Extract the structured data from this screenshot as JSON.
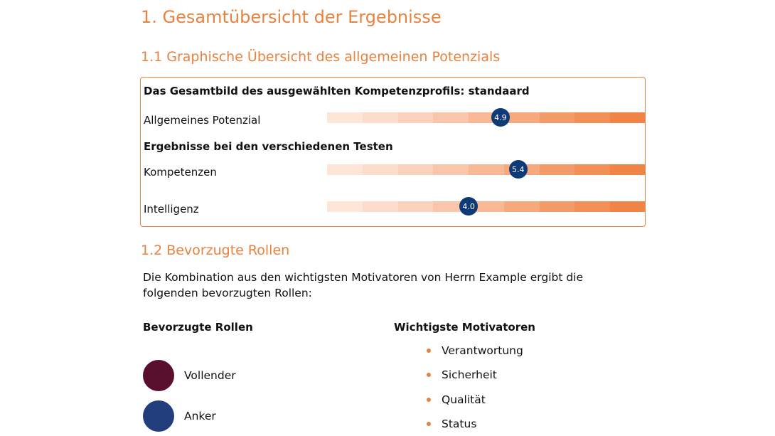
{
  "section1": {
    "title": "1. Gesamtübersicht der Ergebnisse"
  },
  "section11": {
    "title": "1.1 Graphische Übersicht des allgemeinen Potenzials",
    "profile_heading": "Das Gesamtbild des ausgewählten Kompetenzprofils: standaard",
    "tests_heading": "Ergebnisse bei den verschiedenen Testen",
    "scale_max": 9,
    "scale_colors": [
      "#fde5d8",
      "#fcdcca",
      "#fbd2bd",
      "#fac6ab",
      "#f8b893",
      "#f6a97c",
      "#f39b68",
      "#f18f57",
      "#ef8446"
    ],
    "rows": [
      {
        "label": "Allgemeines Potenzial",
        "value": 4.9,
        "display": "4.9"
      },
      {
        "label": "Kompetenzen",
        "value": 5.4,
        "display": "5.4"
      },
      {
        "label": "Intelligenz",
        "value": 4.0,
        "display": "4.0"
      }
    ]
  },
  "section12": {
    "title": "1.2  Bevorzugte Rollen",
    "intro": "Die Kombination aus den wichtigsten Motivatoren von Herrn Example ergibt die folgenden bevorzugten Rollen:",
    "roles_heading": "Bevorzugte Rollen",
    "motivators_heading": "Wichtigste Motivatoren",
    "roles": [
      {
        "name": "Vollender",
        "color": "#5a0f2e"
      },
      {
        "name": "Anker",
        "color": "#223e7c"
      }
    ],
    "motivators": [
      "Verantwortung",
      "Sicherheit",
      "Qualität",
      "Status"
    ]
  }
}
